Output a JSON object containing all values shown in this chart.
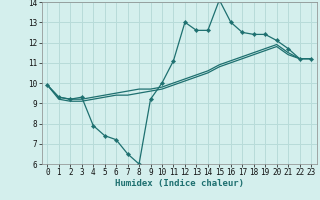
{
  "xlabel": "Humidex (Indice chaleur)",
  "bg_color": "#d4efed",
  "grid_color": "#b8dbd9",
  "line_color": "#1e7070",
  "xlim": [
    -0.5,
    23.5
  ],
  "ylim": [
    6,
    14
  ],
  "xticks": [
    0,
    1,
    2,
    3,
    4,
    5,
    6,
    7,
    8,
    9,
    10,
    11,
    12,
    13,
    14,
    15,
    16,
    17,
    18,
    19,
    20,
    21,
    22,
    23
  ],
  "yticks": [
    6,
    7,
    8,
    9,
    10,
    11,
    12,
    13,
    14
  ],
  "line1_x": [
    0,
    1,
    2,
    3,
    4,
    5,
    6,
    7,
    8,
    9,
    10,
    11,
    12,
    13,
    14,
    15,
    16,
    17,
    18,
    19,
    20,
    21,
    22,
    23
  ],
  "line1_y": [
    9.9,
    9.3,
    9.2,
    9.2,
    9.3,
    9.4,
    9.5,
    9.6,
    9.7,
    9.7,
    9.8,
    10.0,
    10.2,
    10.4,
    10.6,
    10.9,
    11.1,
    11.3,
    11.5,
    11.7,
    11.9,
    11.5,
    11.2,
    11.2
  ],
  "line2_x": [
    0,
    1,
    2,
    3,
    4,
    5,
    6,
    7,
    8,
    9,
    10,
    11,
    12,
    13,
    14,
    15,
    16,
    17,
    18,
    19,
    20,
    21,
    22,
    23
  ],
  "line2_y": [
    9.9,
    9.3,
    9.2,
    9.3,
    7.9,
    7.4,
    7.2,
    6.5,
    6.0,
    9.2,
    10.0,
    11.1,
    13.0,
    12.6,
    12.6,
    14.1,
    13.0,
    12.5,
    12.4,
    12.4,
    12.1,
    11.7,
    11.2,
    11.2
  ],
  "line3_x": [
    0,
    1,
    2,
    3,
    4,
    5,
    6,
    7,
    8,
    9,
    10,
    11,
    12,
    13,
    14,
    15,
    16,
    17,
    18,
    19,
    20,
    21,
    22,
    23
  ],
  "line3_y": [
    9.9,
    9.2,
    9.1,
    9.1,
    9.2,
    9.3,
    9.4,
    9.4,
    9.5,
    9.6,
    9.7,
    9.9,
    10.1,
    10.3,
    10.5,
    10.8,
    11.0,
    11.2,
    11.4,
    11.6,
    11.8,
    11.4,
    11.2,
    11.2
  ]
}
